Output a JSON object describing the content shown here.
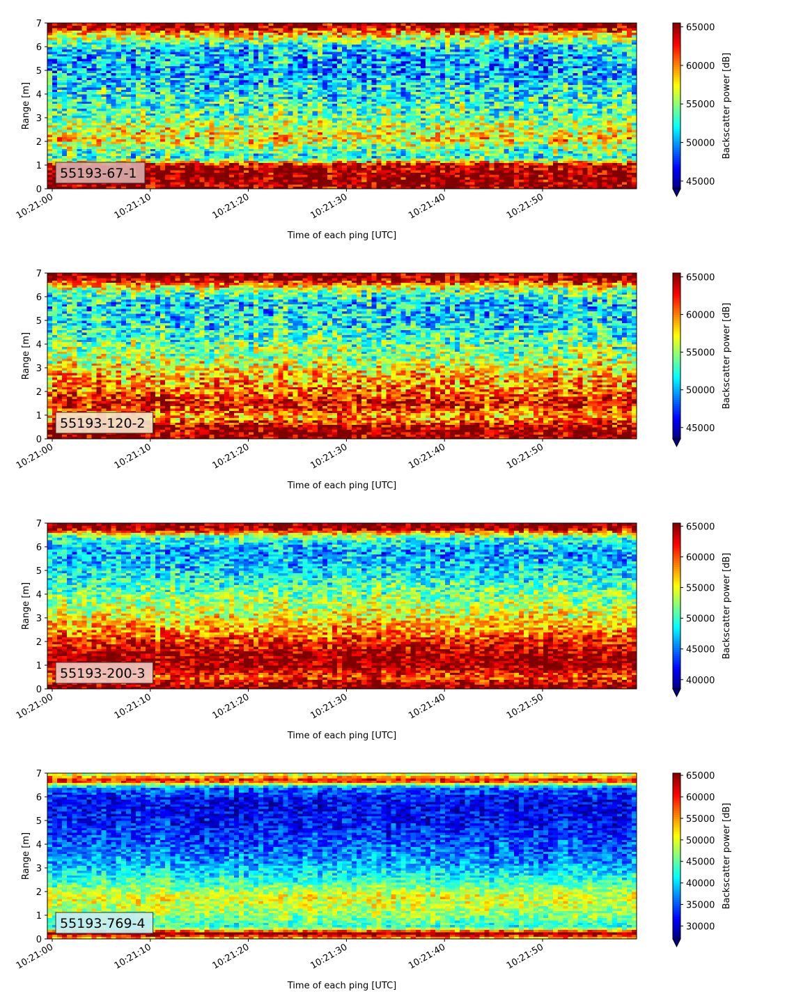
{
  "chart_data": [
    {
      "type": "heatmap",
      "label": "55193-67-1",
      "xlabel": "Time of each ping [UTC]",
      "ylabel": "Range [m]",
      "colorbar_label": "Backscatter power [dB]",
      "colormap": "jet",
      "xlim": [
        "10:21:00",
        "10:21:59"
      ],
      "xticks": [
        "10:21:00",
        "10:21:10",
        "10:21:20",
        "10:21:30",
        "10:21:40",
        "10:21:50"
      ],
      "ylim": [
        0,
        7
      ],
      "yticks": [
        "0",
        "1",
        "2",
        "3",
        "4",
        "5",
        "6",
        "7"
      ],
      "clim": [
        44000,
        65500
      ],
      "cticks": [
        "45000",
        "50000",
        "55000",
        "60000",
        "65000"
      ],
      "profile": [
        {
          "range": 0.15,
          "value": 65500
        },
        {
          "range": 0.6,
          "value": 65500
        },
        {
          "range": 1.0,
          "value": 64500
        },
        {
          "range": 1.3,
          "value": 53000
        },
        {
          "range": 1.7,
          "value": 54500
        },
        {
          "range": 2.1,
          "value": 58000
        },
        {
          "range": 2.6,
          "value": 56500
        },
        {
          "range": 3.2,
          "value": 54000
        },
        {
          "range": 4.0,
          "value": 52500
        },
        {
          "range": 5.0,
          "value": 50500
        },
        {
          "range": 5.9,
          "value": 51000
        },
        {
          "range": 6.5,
          "value": 58000
        },
        {
          "range": 6.9,
          "value": 65500
        }
      ]
    },
    {
      "type": "heatmap",
      "label": "55193-120-2",
      "xlabel": "Time of each ping [UTC]",
      "ylabel": "Range [m]",
      "colorbar_label": "Backscatter power [dB]",
      "colormap": "jet",
      "xlim": [
        "10:21:00",
        "10:21:59"
      ],
      "xticks": [
        "10:21:00",
        "10:21:10",
        "10:21:20",
        "10:21:30",
        "10:21:40",
        "10:21:50"
      ],
      "ylim": [
        0,
        7
      ],
      "yticks": [
        "0",
        "1",
        "2",
        "3",
        "4",
        "5",
        "6",
        "7"
      ],
      "clim": [
        43500,
        65500
      ],
      "cticks": [
        "45000",
        "50000",
        "55000",
        "60000",
        "65000"
      ],
      "profile": [
        {
          "range": 0.2,
          "value": 65500
        },
        {
          "range": 0.5,
          "value": 65000
        },
        {
          "range": 0.9,
          "value": 59000
        },
        {
          "range": 1.5,
          "value": 63500
        },
        {
          "range": 2.0,
          "value": 60500
        },
        {
          "range": 2.7,
          "value": 58500
        },
        {
          "range": 3.4,
          "value": 55500
        },
        {
          "range": 4.2,
          "value": 53500
        },
        {
          "range": 5.0,
          "value": 51500
        },
        {
          "range": 5.8,
          "value": 51000
        },
        {
          "range": 6.3,
          "value": 55000
        },
        {
          "range": 6.8,
          "value": 65500
        }
      ]
    },
    {
      "type": "heatmap",
      "label": "55193-200-3",
      "xlabel": "Time of each ping [UTC]",
      "ylabel": "Range [m]",
      "colorbar_label": "Backscatter power [dB]",
      "colormap": "jet",
      "xlim": [
        "10:21:00",
        "10:21:59"
      ],
      "xticks": [
        "10:21:00",
        "10:21:10",
        "10:21:20",
        "10:21:30",
        "10:21:40",
        "10:21:50"
      ],
      "ylim": [
        0,
        7
      ],
      "yticks": [
        "0",
        "1",
        "2",
        "3",
        "4",
        "5",
        "6",
        "7"
      ],
      "clim": [
        38500,
        65500
      ],
      "cticks": [
        "40000",
        "45000",
        "50000",
        "55000",
        "60000",
        "65000"
      ],
      "profile": [
        {
          "range": 0.1,
          "value": 65500
        },
        {
          "range": 0.5,
          "value": 60000
        },
        {
          "range": 1.0,
          "value": 65500
        },
        {
          "range": 1.5,
          "value": 64500
        },
        {
          "range": 2.0,
          "value": 61500
        },
        {
          "range": 2.6,
          "value": 57500
        },
        {
          "range": 3.3,
          "value": 54000
        },
        {
          "range": 4.1,
          "value": 51500
        },
        {
          "range": 5.0,
          "value": 48000
        },
        {
          "range": 5.8,
          "value": 46000
        },
        {
          "range": 6.4,
          "value": 50000
        },
        {
          "range": 6.8,
          "value": 65500
        }
      ]
    },
    {
      "type": "heatmap",
      "label": "55193-769-4",
      "xlabel": "Time of each ping [UTC]",
      "ylabel": "Range [m]",
      "colorbar_label": "Backscatter power [dB]",
      "colormap": "jet",
      "xlim": [
        "10:21:00",
        "10:21:59"
      ],
      "xticks": [
        "10:21:00",
        "10:21:10",
        "10:21:20",
        "10:21:30",
        "10:21:40",
        "10:21:50"
      ],
      "ylim": [
        0,
        7
      ],
      "yticks": [
        "0",
        "1",
        "2",
        "3",
        "4",
        "5",
        "6",
        "7"
      ],
      "clim": [
        27000,
        65500
      ],
      "cticks": [
        "30000",
        "35000",
        "40000",
        "45000",
        "50000",
        "55000",
        "60000",
        "65000"
      ],
      "profile": [
        {
          "range": 0.05,
          "value": 55000
        },
        {
          "range": 0.25,
          "value": 65500
        },
        {
          "range": 0.5,
          "value": 43000
        },
        {
          "range": 1.2,
          "value": 48000
        },
        {
          "range": 1.8,
          "value": 50000
        },
        {
          "range": 2.5,
          "value": 43000
        },
        {
          "range": 3.2,
          "value": 38000
        },
        {
          "range": 4.0,
          "value": 35000
        },
        {
          "range": 5.0,
          "value": 32000
        },
        {
          "range": 5.8,
          "value": 31000
        },
        {
          "range": 6.4,
          "value": 36000
        },
        {
          "range": 6.7,
          "value": 62000
        },
        {
          "range": 6.95,
          "value": 50000
        }
      ]
    }
  ]
}
